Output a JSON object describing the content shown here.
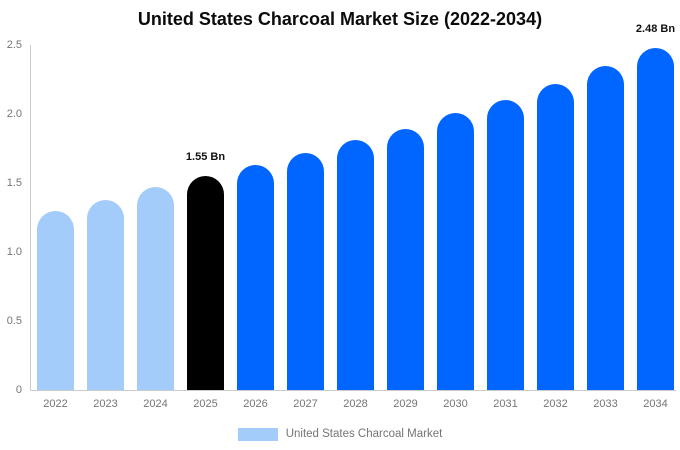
{
  "chart_data": {
    "type": "bar",
    "title": "United States Charcoal Market Size (2022-2034)",
    "categories": [
      "2022",
      "2023",
      "2024",
      "2025",
      "2026",
      "2027",
      "2028",
      "2029",
      "2030",
      "2031",
      "2032",
      "2033",
      "2034"
    ],
    "values": [
      1.3,
      1.38,
      1.47,
      1.55,
      1.63,
      1.72,
      1.81,
      1.89,
      2.01,
      2.1,
      2.22,
      2.35,
      2.48
    ],
    "colors": [
      "#A3CCFB",
      "#A3CCFB",
      "#A3CCFB",
      "#000000",
      "#0066FF",
      "#0066FF",
      "#0066FF",
      "#0066FF",
      "#0066FF",
      "#0066FF",
      "#0066FF",
      "#0066FF",
      "#0066FF"
    ],
    "y_ticks": [
      "0",
      "0.5",
      "1.0",
      "1.5",
      "2.0",
      "2.5"
    ],
    "ylim": [
      0,
      2.5
    ],
    "grid": false,
    "annotations": [
      {
        "category": "2025",
        "text": "1.55 Bn"
      },
      {
        "category": "2034",
        "text": "2.48 Bn"
      }
    ],
    "legend": {
      "label": "United States Charcoal Market",
      "color": "#A3CCFB",
      "position": "bottom"
    },
    "axis_color": "#CCCCCC",
    "xlabel": "",
    "ylabel": ""
  }
}
